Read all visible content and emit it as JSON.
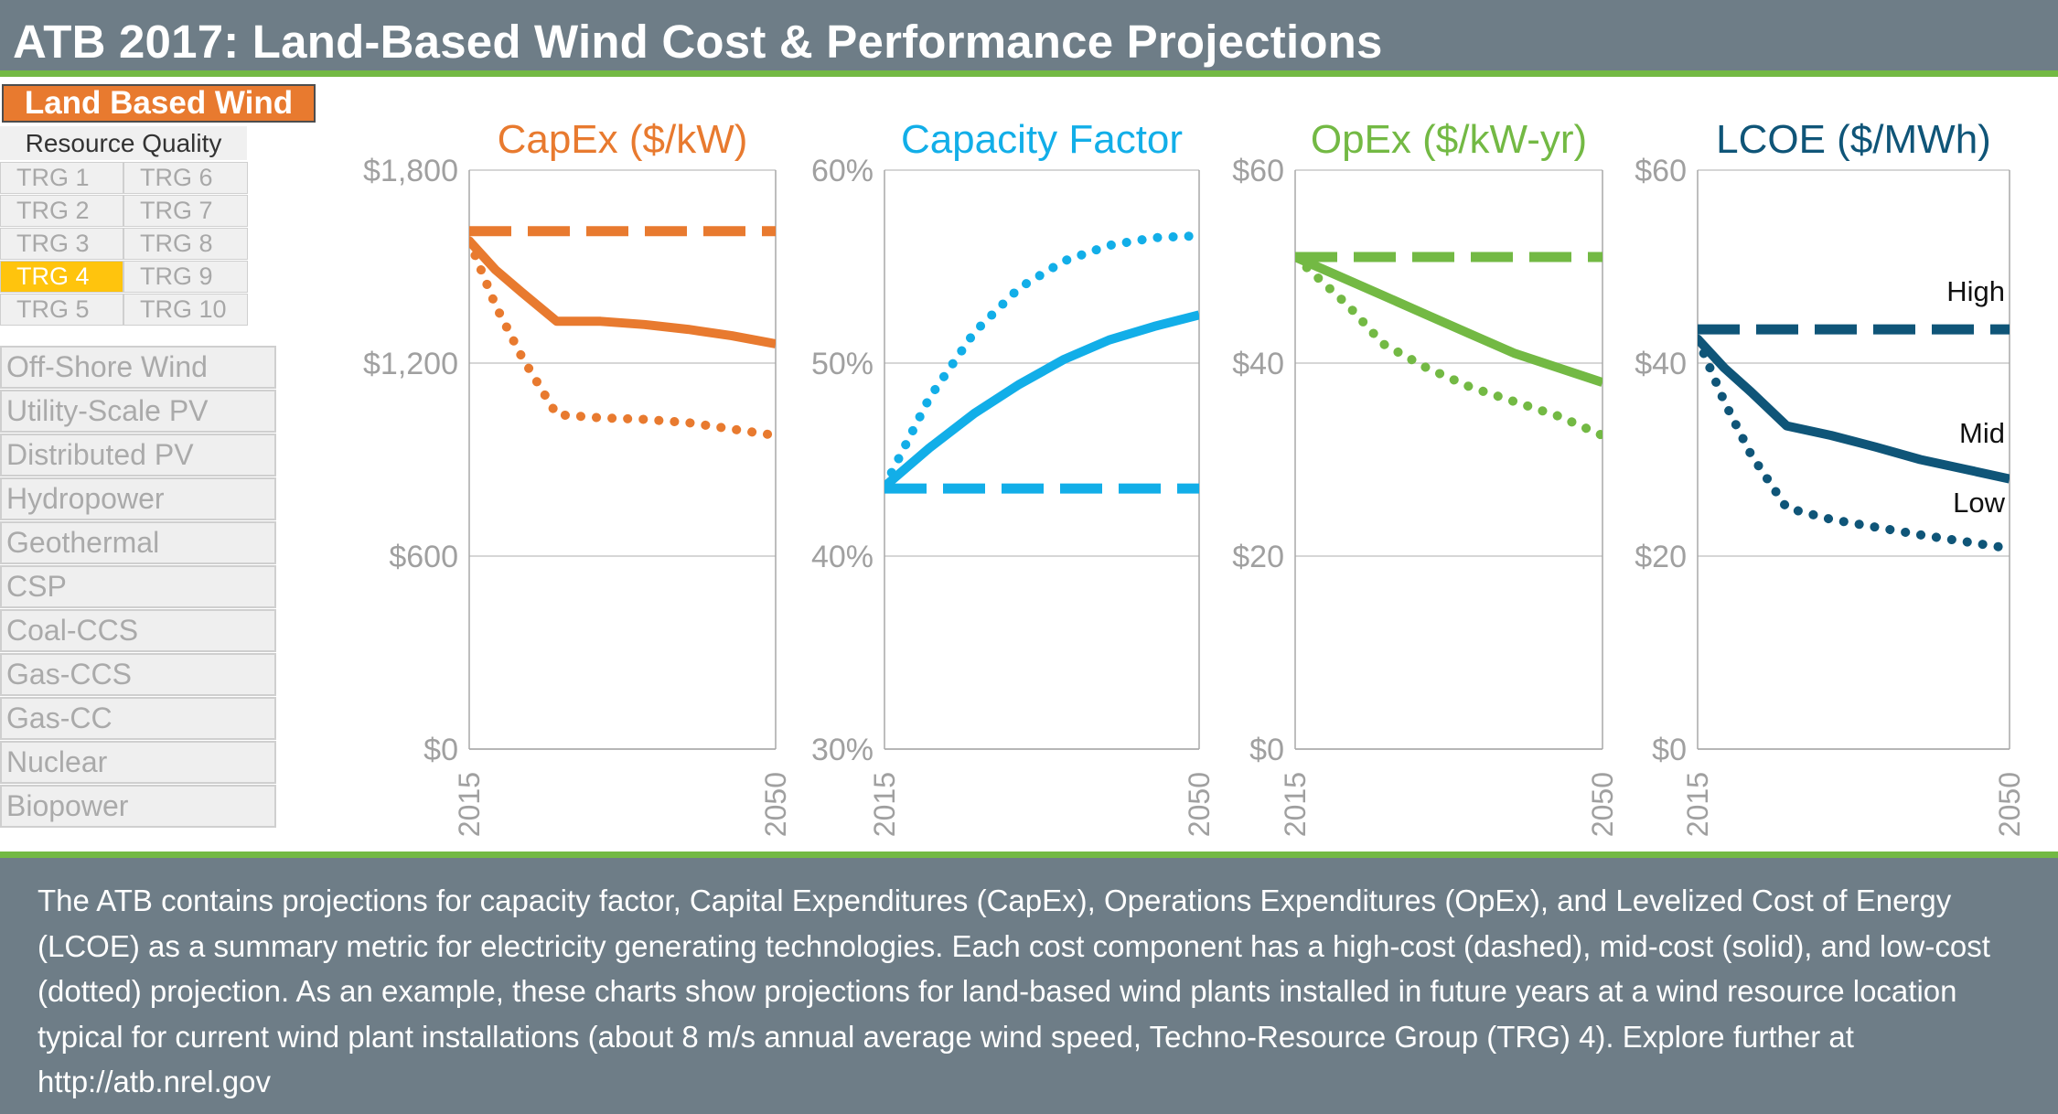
{
  "header": {
    "title": "ATB 2017: Land-Based Wind Cost & Performance Projections"
  },
  "sidebar": {
    "active_technology": "Land Based Wind",
    "resource_quality_label": "Resource Quality",
    "trg_options": [
      "TRG 1",
      "TRG 6",
      "TRG 2",
      "TRG 7",
      "TRG 3",
      "TRG 8",
      "TRG 4",
      "TRG 9",
      "TRG 5",
      "TRG 10"
    ],
    "selected_trg": "TRG 4",
    "other_technologies": [
      "Off-Shore Wind",
      "Utility-Scale PV",
      "Distributed PV",
      "Hydropower",
      "Geothermal",
      "CSP",
      "Coal-CCS",
      "Gas-CCS",
      "Gas-CC",
      "Nuclear",
      "Biopower"
    ]
  },
  "colors": {
    "header_bg": "#6e7d87",
    "accent_green": "#73b944",
    "capex": "#e87a2f",
    "capacity_factor": "#12aee8",
    "opex": "#73b944",
    "lcoe": "#0f5578",
    "selected_trg": "#ffc40d",
    "tick_label": "#a0a0a0"
  },
  "chart_data": [
    {
      "type": "line",
      "title": "CapEx ($/kW)",
      "x": [
        2015,
        2050
      ],
      "x_tick_labels": [
        "2015",
        "2050"
      ],
      "ylim": [
        0,
        1800
      ],
      "y_tick_labels": [
        "$0",
        "$600",
        "$1,200",
        "$1,800"
      ],
      "y_ticks": [
        0,
        600,
        1200,
        1800
      ],
      "series": [
        {
          "style": "dashed",
          "x": [
            2015,
            2050
          ],
          "y": [
            1610,
            1610
          ]
        },
        {
          "style": "solid",
          "x": [
            2015,
            2018,
            2021,
            2025,
            2030,
            2035,
            2040,
            2045,
            2050
          ],
          "y": [
            1580,
            1490,
            1420,
            1330,
            1330,
            1320,
            1305,
            1285,
            1260
          ]
        },
        {
          "style": "dotted",
          "x": [
            2015,
            2018,
            2021,
            2025,
            2030,
            2035,
            2040,
            2045,
            2050
          ],
          "y": [
            1580,
            1380,
            1220,
            1040,
            1030,
            1025,
            1015,
            995,
            975
          ]
        }
      ]
    },
    {
      "type": "line",
      "title": "Capacity Factor",
      "x": [
        2015,
        2050
      ],
      "x_tick_labels": [
        "2015",
        "2050"
      ],
      "ylim": [
        30,
        60
      ],
      "y_tick_labels": [
        "30%",
        "40%",
        "50%",
        "60%"
      ],
      "y_ticks": [
        30,
        40,
        50,
        60
      ],
      "series": [
        {
          "style": "dashed",
          "x": [
            2015,
            2050
          ],
          "y": [
            43.5,
            43.5
          ]
        },
        {
          "style": "solid",
          "x": [
            2015,
            2020,
            2025,
            2030,
            2035,
            2040,
            2045,
            2050
          ],
          "y": [
            43.6,
            45.6,
            47.4,
            48.9,
            50.2,
            51.2,
            51.9,
            52.5
          ]
        },
        {
          "style": "dotted",
          "x": [
            2015,
            2020,
            2025,
            2030,
            2035,
            2040,
            2045,
            2050
          ],
          "y": [
            43.6,
            48.2,
            51.6,
            53.9,
            55.3,
            56.1,
            56.5,
            56.6
          ]
        }
      ]
    },
    {
      "type": "line",
      "title": "OpEx ($/kW-yr)",
      "x": [
        2015,
        2050
      ],
      "x_tick_labels": [
        "2015",
        "2050"
      ],
      "ylim": [
        0,
        60
      ],
      "y_tick_labels": [
        "$0",
        "$20",
        "$40",
        "$60"
      ],
      "y_ticks": [
        0,
        20,
        40,
        60
      ],
      "series": [
        {
          "style": "dashed",
          "x": [
            2015,
            2050
          ],
          "y": [
            51,
            51
          ]
        },
        {
          "style": "solid",
          "x": [
            2015,
            2020,
            2025,
            2030,
            2035,
            2040,
            2045,
            2050
          ],
          "y": [
            51,
            49,
            47,
            45,
            43,
            41,
            39.5,
            38
          ]
        },
        {
          "style": "dotted",
          "x": [
            2015,
            2018,
            2021,
            2025,
            2030,
            2035,
            2040,
            2045,
            2050
          ],
          "y": [
            51,
            48.5,
            46,
            42,
            39.5,
            37.5,
            36,
            34.5,
            32.5
          ]
        }
      ]
    },
    {
      "type": "line",
      "title": "LCOE ($/MWh)",
      "x": [
        2015,
        2050
      ],
      "x_tick_labels": [
        "2015",
        "2050"
      ],
      "ylim": [
        0,
        60
      ],
      "y_tick_labels": [
        "$0",
        "$20",
        "$40",
        "$60"
      ],
      "y_ticks": [
        0,
        20,
        40,
        60
      ],
      "annotations": [
        "High",
        "Mid",
        "Low"
      ],
      "series": [
        {
          "name": "High",
          "style": "dashed",
          "x": [
            2015,
            2050
          ],
          "y": [
            43.5,
            43.5
          ]
        },
        {
          "name": "Mid",
          "style": "solid",
          "x": [
            2015,
            2018,
            2021,
            2025,
            2030,
            2035,
            2040,
            2045,
            2050
          ],
          "y": [
            42.5,
            39.5,
            37,
            33.5,
            32.5,
            31.3,
            30,
            29,
            28
          ]
        },
        {
          "name": "Low",
          "style": "dotted",
          "x": [
            2015,
            2018,
            2021,
            2025,
            2030,
            2035,
            2040,
            2045,
            2050
          ],
          "y": [
            42.5,
            36,
            30.5,
            25,
            23.8,
            23,
            22.2,
            21.5,
            20.8
          ]
        }
      ]
    }
  ],
  "footer": {
    "description": "The ATB contains projections for capacity factor, Capital Expenditures (CapEx), Operations Expenditures (OpEx), and Levelized Cost of Energy (LCOE) as a summary metric for electricity generating technologies. Each cost component has a high-cost (dashed), mid-cost (solid), and low-cost (dotted) projection. As an example, these charts show projections for land-based wind plants installed in future years at a wind resource location typical for current wind plant installations (about 8 m/s annual average wind speed, Techno-Resource Group (TRG) 4). Explore further at http://atb.nrel.gov"
  }
}
